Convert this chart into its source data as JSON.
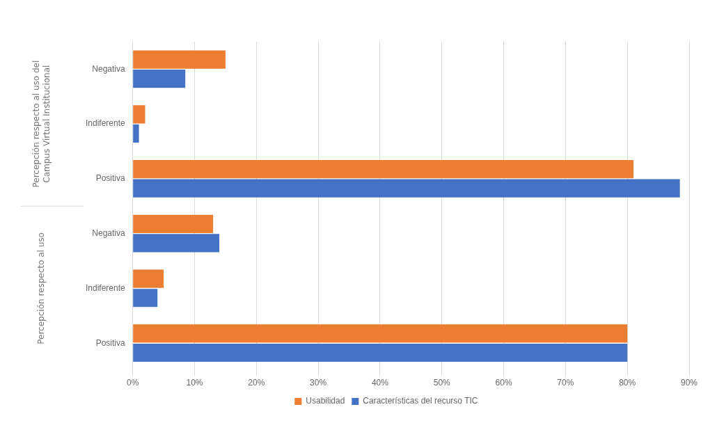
{
  "chart_data": {
    "type": "bar",
    "orientation": "horizontal",
    "categories": [
      "Negativa",
      "Indiferente",
      "Positiva",
      "Negativa",
      "Indiferente",
      "Positiva"
    ],
    "series": [
      {
        "name": "Usabilidad",
        "color": "#ed7d31",
        "values": [
          15,
          2,
          81,
          13,
          5,
          80
        ]
      },
      {
        "name": "Características del recurso TIC",
        "color": "#4472c4",
        "values": [
          8.5,
          1,
          88.5,
          14,
          4,
          80
        ]
      }
    ],
    "xlim": [
      0,
      90
    ],
    "xticks": [
      {
        "value": 0,
        "label": "0%"
      },
      {
        "value": 10,
        "label": "10%"
      },
      {
        "value": 20,
        "label": "20%"
      },
      {
        "value": 30,
        "label": "30%"
      },
      {
        "value": 40,
        "label": "40%"
      },
      {
        "value": 50,
        "label": "50%"
      },
      {
        "value": 60,
        "label": "60%"
      },
      {
        "value": 70,
        "label": "70%"
      },
      {
        "value": 80,
        "label": "80%"
      },
      {
        "value": 90,
        "label": "90%"
      }
    ],
    "annotations": [
      "Percepción respecto al uso del Campus Virtual Institucional",
      "Percepción respecto al uso"
    ],
    "grid": "x",
    "legend": "bottom"
  }
}
